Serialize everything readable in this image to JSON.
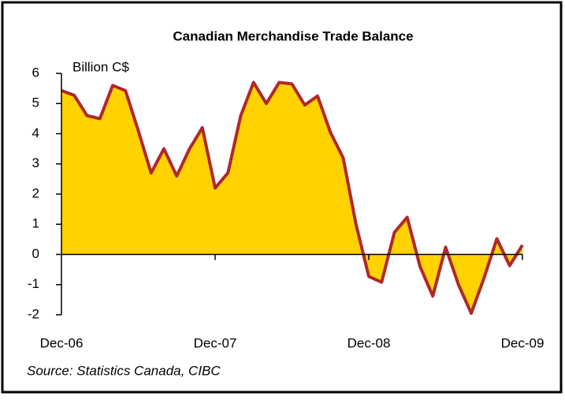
{
  "chart_data": {
    "type": "area",
    "title": "Canadian Merchandise Trade Balance",
    "y_label": "Billion C$",
    "source": "Source: Statistics Canada, CIBC",
    "categories": [
      "Dec-06",
      null,
      null,
      null,
      null,
      null,
      null,
      null,
      null,
      null,
      null,
      null,
      "Dec-07",
      null,
      null,
      null,
      null,
      null,
      null,
      null,
      null,
      null,
      null,
      null,
      "Dec-08",
      null,
      null,
      null,
      null,
      null,
      null,
      null,
      null,
      null,
      null,
      null,
      "Dec-09"
    ],
    "series": [
      {
        "name": "Trade balance",
        "color": "#b0282a",
        "fill": "#ffd200",
        "values": [
          5.43,
          5.27,
          4.6,
          4.5,
          5.6,
          5.43,
          4.1,
          2.7,
          3.5,
          2.6,
          3.5,
          4.2,
          2.2,
          2.7,
          4.6,
          5.7,
          5.0,
          5.7,
          5.65,
          4.95,
          5.25,
          4.05,
          3.2,
          1.0,
          -0.73,
          -0.92,
          0.73,
          1.23,
          -0.4,
          -1.38,
          0.24,
          -1.0,
          -1.95,
          -0.78,
          0.52,
          -0.37,
          0.31
        ]
      }
    ],
    "ylim": [
      -2,
      6
    ],
    "yticks": [
      -2,
      -1,
      0,
      1,
      2,
      3,
      4,
      5,
      6
    ]
  }
}
